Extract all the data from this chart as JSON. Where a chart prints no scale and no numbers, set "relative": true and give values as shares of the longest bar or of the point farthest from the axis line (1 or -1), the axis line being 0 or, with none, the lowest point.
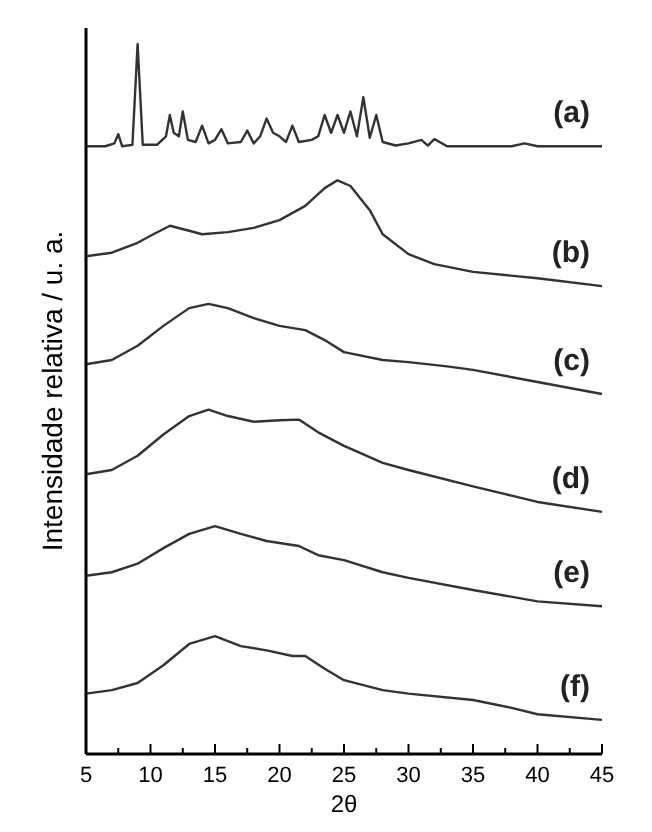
{
  "chart_data": {
    "type": "line",
    "relative": true,
    "xlabel": "2θ",
    "ylabel": "Intensidade relativa / u. a.",
    "xlim": [
      5,
      45
    ],
    "xticks": [
      5,
      {
        "value": 7.5,
        "label": null
      },
      10,
      {
        "value": 12.5,
        "label": null
      },
      15,
      {
        "value": 17.5,
        "label": null
      },
      20,
      {
        "value": 22.5,
        "label": null
      },
      25,
      {
        "value": 27.5,
        "label": null
      },
      30,
      {
        "value": 32.5,
        "label": null
      },
      35,
      {
        "value": 37.5,
        "label": null
      },
      40,
      {
        "value": 42.5,
        "label": null
      },
      45
    ],
    "legend": false,
    "grid": false,
    "marker": "none",
    "line_style": "solid",
    "series": [
      {
        "name": "(a)",
        "color": "#333333",
        "x": [
          5,
          6.5,
          7.2,
          7.5,
          7.8,
          8.6,
          9.0,
          9.4,
          10.5,
          11.2,
          11.5,
          11.8,
          12.2,
          12.5,
          12.9,
          13.5,
          14,
          14.5,
          15,
          15.5,
          16,
          17,
          17.5,
          18,
          18.5,
          19,
          19.5,
          20,
          20.5,
          21,
          21.5,
          22.5,
          23,
          23.5,
          24,
          24.5,
          25,
          25.5,
          26,
          26.5,
          27,
          27.5,
          28,
          29,
          30,
          31,
          31.5,
          32,
          33,
          35,
          38,
          39,
          40,
          45
        ],
        "values": [
          0.856,
          0.856,
          0.86,
          0.873,
          0.856,
          0.858,
          1.0,
          0.858,
          0.858,
          0.87,
          0.9,
          0.875,
          0.87,
          0.905,
          0.865,
          0.862,
          0.885,
          0.86,
          0.865,
          0.88,
          0.86,
          0.862,
          0.878,
          0.86,
          0.87,
          0.895,
          0.875,
          0.87,
          0.862,
          0.885,
          0.862,
          0.865,
          0.87,
          0.9,
          0.875,
          0.9,
          0.875,
          0.905,
          0.87,
          0.925,
          0.868,
          0.9,
          0.862,
          0.857,
          0.86,
          0.865,
          0.857,
          0.866,
          0.856,
          0.856,
          0.856,
          0.86,
          0.856,
          0.856
        ]
      },
      {
        "name": "(b)",
        "color": "#333333",
        "x": [
          5,
          7,
          9,
          10,
          11.5,
          13,
          14,
          16,
          18,
          20,
          22,
          23.5,
          24.5,
          25.5,
          27,
          28,
          30,
          32,
          35,
          40,
          45
        ],
        "values": [
          0.701,
          0.706,
          0.72,
          0.73,
          0.744,
          0.737,
          0.732,
          0.735,
          0.741,
          0.752,
          0.772,
          0.797,
          0.808,
          0.8,
          0.766,
          0.732,
          0.704,
          0.69,
          0.679,
          0.67,
          0.659
        ]
      },
      {
        "name": "(c)",
        "color": "#333333",
        "x": [
          5,
          7,
          9,
          11,
          13,
          14.5,
          16,
          18,
          20,
          22,
          23.5,
          25,
          28,
          30,
          33,
          35,
          40,
          45
        ],
        "values": [
          0.549,
          0.555,
          0.575,
          0.603,
          0.628,
          0.634,
          0.628,
          0.614,
          0.603,
          0.597,
          0.583,
          0.566,
          0.555,
          0.552,
          0.546,
          0.541,
          0.524,
          0.507
        ]
      },
      {
        "name": "(d)",
        "color": "#333333",
        "x": [
          5,
          7,
          9,
          11,
          13,
          14.5,
          16,
          18,
          20,
          21.5,
          23,
          25,
          28,
          30,
          35,
          40,
          45
        ],
        "values": [
          0.394,
          0.4,
          0.42,
          0.45,
          0.476,
          0.485,
          0.476,
          0.468,
          0.47,
          0.471,
          0.453,
          0.434,
          0.41,
          0.4,
          0.377,
          0.355,
          0.341
        ]
      },
      {
        "name": "(e)",
        "color": "#333333",
        "x": [
          5,
          7,
          9,
          11,
          13,
          15,
          17,
          19,
          21.5,
          23,
          25,
          28,
          30,
          35,
          40,
          45
        ],
        "values": [
          0.251,
          0.256,
          0.268,
          0.29,
          0.31,
          0.321,
          0.31,
          0.3,
          0.293,
          0.28,
          0.273,
          0.256,
          0.248,
          0.231,
          0.215,
          0.208
        ]
      },
      {
        "name": "(f)",
        "color": "#333333",
        "x": [
          5,
          7,
          9,
          11,
          13,
          15,
          17,
          19,
          21,
          22,
          23.5,
          25,
          28,
          30,
          35,
          38,
          40,
          45
        ],
        "values": [
          0.085,
          0.09,
          0.1,
          0.125,
          0.155,
          0.166,
          0.152,
          0.146,
          0.138,
          0.138,
          0.12,
          0.104,
          0.09,
          0.085,
          0.076,
          0.065,
          0.056,
          0.048
        ]
      }
    ]
  }
}
